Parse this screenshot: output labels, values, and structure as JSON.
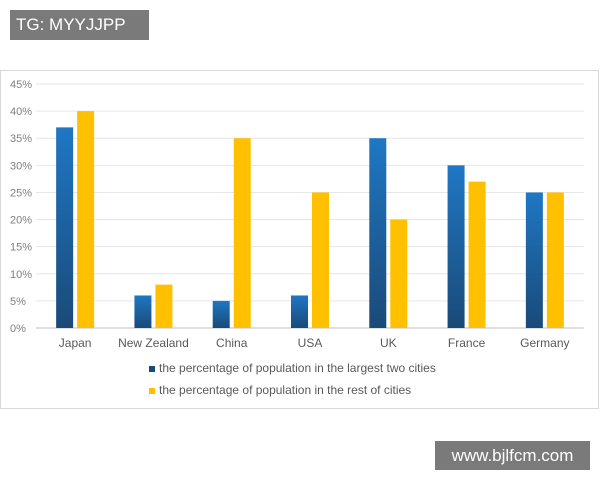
{
  "watermark_top": "TG: MYYJJPP",
  "watermark_bottom": "www.bjlfcm.com",
  "chart_data": {
    "type": "bar",
    "title": "",
    "xlabel": "",
    "ylabel": "",
    "categories": [
      "Japan",
      "New Zealand",
      "China",
      "USA",
      "UK",
      "France",
      "Germany"
    ],
    "series": [
      {
        "name": "the percentage of population in the largest two cities",
        "color": "#1f77c4",
        "color_dark": "#1a4a78",
        "values": [
          37,
          6,
          5,
          6,
          35,
          30,
          25
        ]
      },
      {
        "name": "the percentage of population in the rest of cities",
        "color": "#ffc000",
        "values": [
          40,
          8,
          35,
          25,
          20,
          27,
          25
        ]
      }
    ],
    "ylim": [
      0,
      45
    ],
    "yticks": [
      0,
      5,
      10,
      15,
      20,
      25,
      30,
      35,
      40,
      45
    ],
    "ytick_labels": [
      "0%",
      "5%",
      "10%",
      "15%",
      "20%",
      "25%",
      "30%",
      "35%",
      "40%",
      "45%"
    ],
    "grid": true,
    "legend_position": "bottom"
  }
}
